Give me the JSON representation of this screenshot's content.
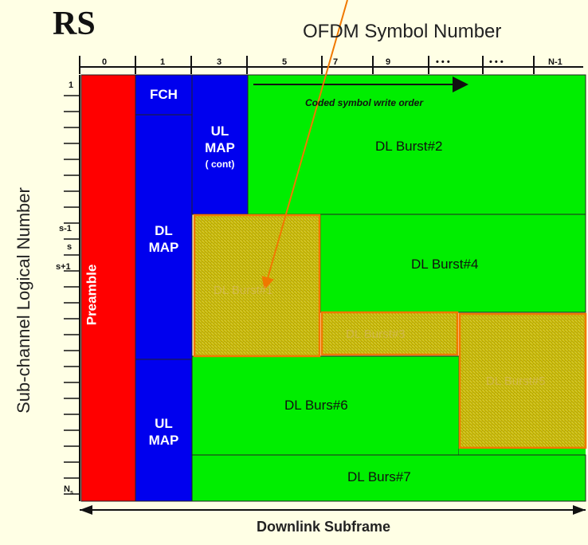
{
  "title": "RS",
  "x_axis": {
    "title": "OFDM Symbol Number",
    "columns": [
      "0",
      "1",
      "3",
      "5",
      "7",
      "9",
      "• • •",
      "• • •",
      "N-1"
    ]
  },
  "y_axis": {
    "title": "Sub-channel Logical Number",
    "rows": [
      "1",
      "s-1",
      "s",
      "s+1",
      "N"
    ],
    "n_subscript": "s"
  },
  "blocks": {
    "preamble": "Preamble",
    "fch": "FCH",
    "ul_map_cont_line1": "UL",
    "ul_map_cont_line2": "MAP",
    "ul_map_cont_line3": "( cont)",
    "dl_map_line1": "DL",
    "dl_map_line2": "MAP",
    "ul_map_line1": "UL",
    "ul_map_line2": "MAP",
    "dl_burst_2": "DL Burst#2",
    "dl_burst_4": "DL Burst#4",
    "dl_burst_1": "DL Burst#1",
    "dl_burst_3": "DL Burst#3",
    "dl_burst_5": "DL Burst#5",
    "dl_burst_6": "DL Burs#6",
    "dl_burst_7": "DL Burs#7"
  },
  "annotations": {
    "write_order": "Coded symbol write order",
    "downlink_subframe": "Downlink Subframe"
  },
  "colors": {
    "background": "#FFFFE5",
    "preamble": "#FF0000",
    "map": "#0000EE",
    "burst": "#00EE00",
    "highlight_fill": "#C8B800",
    "highlight_border": "#F07800",
    "arrow": "#F07800"
  }
}
